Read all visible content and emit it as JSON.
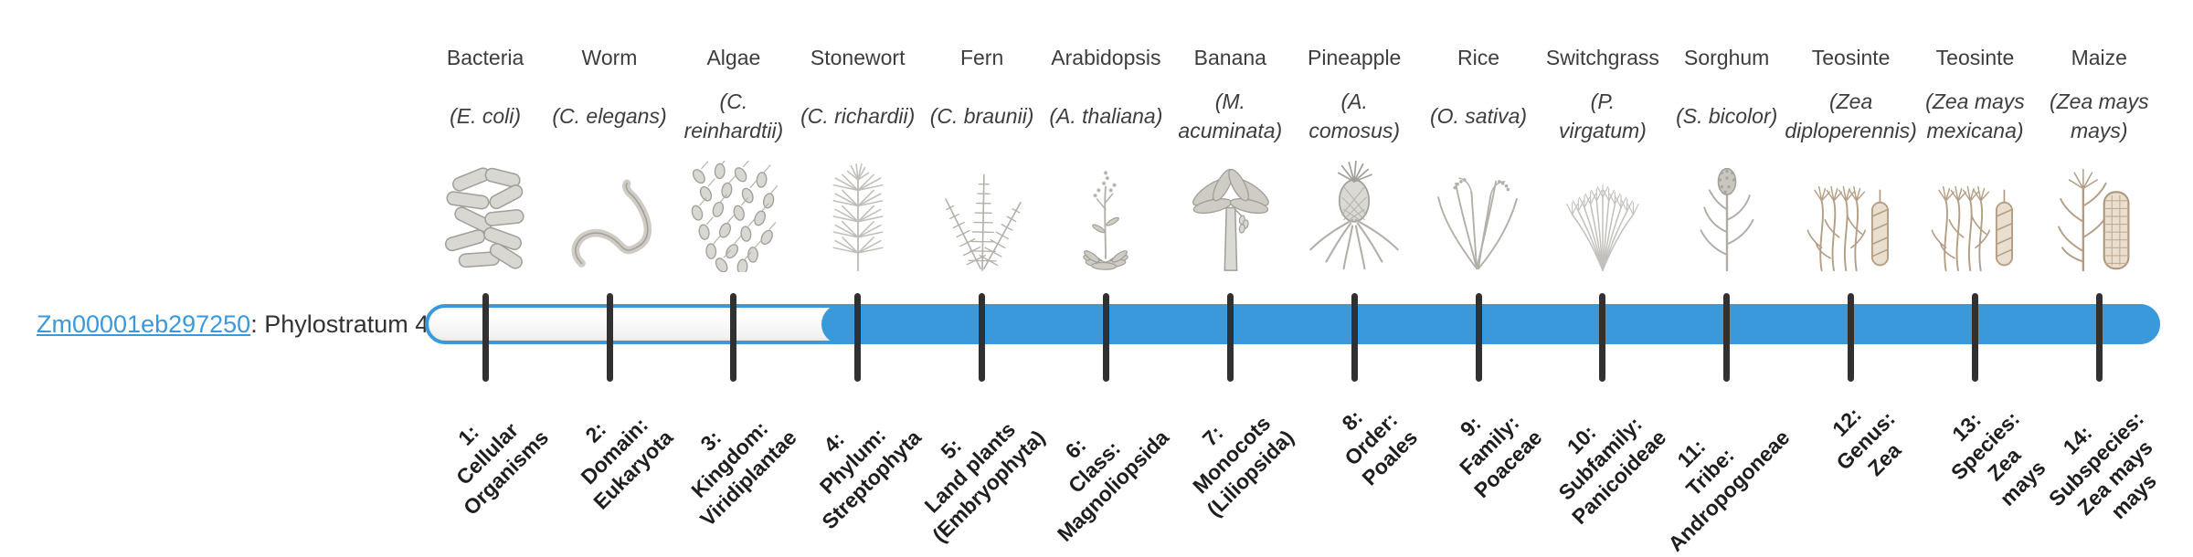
{
  "gene": {
    "id": "Zm00001eb297250",
    "phylostratum_text": ": Phylostratum 4",
    "phylostratum": 4
  },
  "timeline": {
    "total_strata": 14,
    "filled_from_stratum": 4,
    "bar_color": "#3999db",
    "track_color": "#fbfbfb",
    "tick_color": "#313131",
    "link_color": "#3999db"
  },
  "taxa": [
    {
      "stratum": 1,
      "common_name": "Bacteria",
      "scientific_name_lines": [
        "(E. coli)"
      ],
      "icon": "bacteria",
      "stratum_label_lines": [
        "1:",
        "Cellular",
        "Organisms"
      ]
    },
    {
      "stratum": 2,
      "common_name": "Worm",
      "scientific_name_lines": [
        "(C. elegans)"
      ],
      "icon": "worm",
      "stratum_label_lines": [
        "2:",
        "Domain:",
        "Eukaryota"
      ]
    },
    {
      "stratum": 3,
      "common_name": "Algae",
      "scientific_name_lines": [
        "(C.",
        "reinhardtii)"
      ],
      "icon": "algae",
      "stratum_label_lines": [
        "3:",
        "Kingdom:",
        "Viridiplantae"
      ]
    },
    {
      "stratum": 4,
      "common_name": "Stonewort",
      "scientific_name_lines": [
        "(C. richardii)"
      ],
      "icon": "stonewort",
      "stratum_label_lines": [
        "4:",
        "Phylum:",
        "Streptophyta"
      ]
    },
    {
      "stratum": 5,
      "common_name": "Fern",
      "scientific_name_lines": [
        "(C. braunii)"
      ],
      "icon": "fern",
      "stratum_label_lines": [
        "5:",
        "Land plants",
        "(Embryophyta)"
      ]
    },
    {
      "stratum": 6,
      "common_name": "Arabidopsis",
      "scientific_name_lines": [
        "(A. thaliana)"
      ],
      "icon": "arabidopsis",
      "stratum_label_lines": [
        "6:",
        "Class:",
        "Magnoliopsida"
      ]
    },
    {
      "stratum": 7,
      "common_name": "Banana",
      "scientific_name_lines": [
        "(M.",
        "acuminata)"
      ],
      "icon": "banana",
      "stratum_label_lines": [
        "7:",
        "Monocots",
        "(Liliopsida)"
      ]
    },
    {
      "stratum": 8,
      "common_name": "Pineapple",
      "scientific_name_lines": [
        "(A.",
        "comosus)"
      ],
      "icon": "pineapple",
      "stratum_label_lines": [
        "8:",
        "Order:",
        "Poales"
      ]
    },
    {
      "stratum": 9,
      "common_name": "Rice",
      "scientific_name_lines": [
        "(O. sativa)"
      ],
      "icon": "rice",
      "stratum_label_lines": [
        "9:",
        "Family:",
        "Poaceae"
      ]
    },
    {
      "stratum": 10,
      "common_name": "Switchgrass",
      "scientific_name_lines": [
        "(P.",
        "virgatum)"
      ],
      "icon": "switchgrass",
      "stratum_label_lines": [
        "10:",
        "Subfamily:",
        "Panicoideae"
      ]
    },
    {
      "stratum": 11,
      "common_name": "Sorghum",
      "scientific_name_lines": [
        "(S. bicolor)"
      ],
      "icon": "sorghum",
      "stratum_label_lines": [
        "11:",
        "Tribe:",
        "Andropogoneae"
      ]
    },
    {
      "stratum": 12,
      "common_name": "Teosinte",
      "scientific_name_lines": [
        "(Zea",
        "diploperennis)"
      ],
      "icon": "teosinte",
      "stratum_label_lines": [
        "12:",
        "Genus:",
        "Zea"
      ]
    },
    {
      "stratum": 13,
      "common_name": "Teosinte",
      "scientific_name_lines": [
        "(Zea mays",
        "mexicana)"
      ],
      "icon": "teosinte",
      "stratum_label_lines": [
        "13:",
        "Species:",
        "Zea",
        "mays"
      ]
    },
    {
      "stratum": 14,
      "common_name": "Maize",
      "scientific_name_lines": [
        "(Zea mays",
        "mays)"
      ],
      "icon": "maize",
      "stratum_label_lines": [
        "14:",
        "Subspecies:",
        "Zea mays",
        "mays"
      ]
    }
  ]
}
